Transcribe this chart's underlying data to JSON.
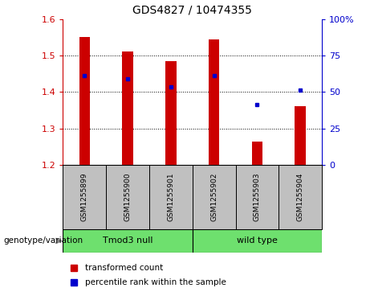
{
  "title": "GDS4827 / 10474355",
  "samples": [
    "GSM1255899",
    "GSM1255900",
    "GSM1255901",
    "GSM1255902",
    "GSM1255903",
    "GSM1255904"
  ],
  "group1_name": "Tmod3 null",
  "group2_name": "wild type",
  "group_color": "#6EE06E",
  "bar_bottom": 1.2,
  "bar_tops": [
    1.55,
    1.51,
    1.485,
    1.545,
    1.265,
    1.36
  ],
  "dot_y_left": [
    1.445,
    1.435,
    1.415,
    1.445,
    1.365,
    1.405
  ],
  "ylim_left": [
    1.2,
    1.6
  ],
  "ylim_right": [
    0,
    100
  ],
  "yticks_left": [
    1.2,
    1.3,
    1.4,
    1.5,
    1.6
  ],
  "yticks_right": [
    0,
    25,
    50,
    75,
    100
  ],
  "ytick_labels_right": [
    "0",
    "25",
    "50",
    "75",
    "100%"
  ],
  "bar_color": "#CC0000",
  "dot_color": "#0000CC",
  "left_tick_color": "#CC0000",
  "right_tick_color": "#0000CC",
  "xlabel_area_color": "#C0C0C0",
  "legend_red_label": "transformed count",
  "legend_blue_label": "percentile rank within the sample",
  "genotype_label": "genotype/variation",
  "fig_width": 4.61,
  "fig_height": 3.63
}
